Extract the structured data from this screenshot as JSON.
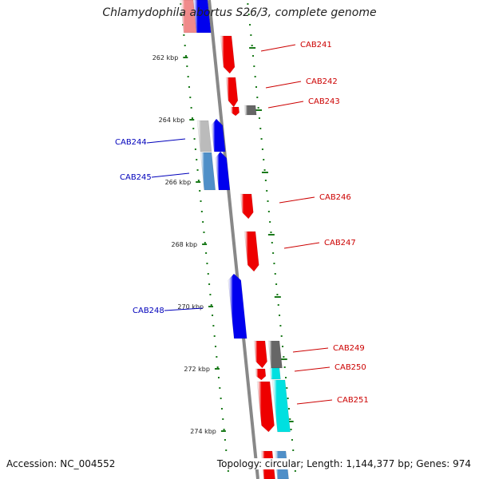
{
  "title": "Chlamydophila abortus S26/3, complete genome",
  "accession": "Accession: NC_004552",
  "stats": "Topology: circular; Length: 1,144,377 bp; Genes: 974",
  "colors": {
    "backbone": "#888888",
    "tick": "#1a7a1a",
    "forward_gene": "#ee0000",
    "reverse_gene": "#0000ee",
    "forward_label": "#cc0000",
    "reverse_label": "#0000bb",
    "gray_feature": "#666666",
    "light_gray_feature": "#bbbbbb",
    "steel_feature": "#4f8fc8",
    "cyan_feature": "#00e0e0",
    "pink_feature": "#f08a8a"
  },
  "ticks": [
    "262 kbp",
    "264 kbp",
    "266 kbp",
    "268 kbp",
    "270 kbp",
    "272 kbp",
    "274 kbp"
  ],
  "genes": [
    {
      "label": "CAB241",
      "strand": "forward"
    },
    {
      "label": "CAB242",
      "strand": "forward"
    },
    {
      "label": "CAB243",
      "strand": "forward"
    },
    {
      "label": "CAB244",
      "strand": "reverse"
    },
    {
      "label": "CAB245",
      "strand": "reverse"
    },
    {
      "label": "CAB246",
      "strand": "forward"
    },
    {
      "label": "CAB247",
      "strand": "forward"
    },
    {
      "label": "CAB248",
      "strand": "reverse"
    },
    {
      "label": "CAB249",
      "strand": "forward"
    },
    {
      "label": "CAB250",
      "strand": "forward"
    },
    {
      "label": "CAB251",
      "strand": "forward"
    }
  ]
}
